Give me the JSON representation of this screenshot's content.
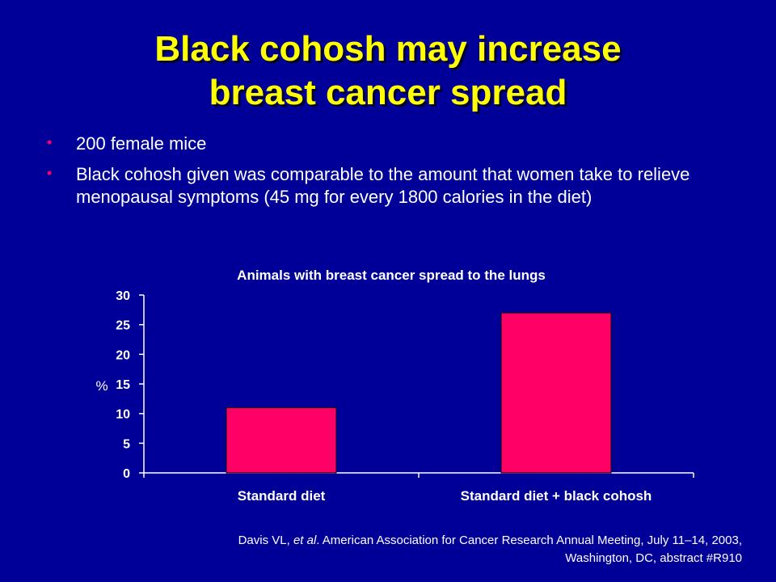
{
  "slide": {
    "title_line1": "Black cohosh may increase",
    "title_line2": "breast cancer spread",
    "bullets": [
      "200 female mice",
      "Black cohosh given was comparable to the amount that women take to relieve menopausal symptoms (45 mg for every 1800 calories in the diet)"
    ],
    "bullet_symbol": "•",
    "citation": {
      "prefix": "Davis VL, ",
      "italic": "et al",
      "rest": ". American Association for Cancer Research Annual Meeting, July 11–14, 2003,",
      "line2": "Washington, DC, abstract #R910"
    }
  },
  "colors": {
    "background": "#000099",
    "title": "#ffff00",
    "bar_fill": "#ff0066",
    "bullet": "#ff0066",
    "text": "#ffffff"
  },
  "chart_data": {
    "type": "bar",
    "title": "Animals with breast cancer spread to the lungs",
    "categories": [
      "Standard diet",
      "Standard diet + black cohosh"
    ],
    "values": [
      11,
      27
    ],
    "xlabel": "",
    "ylabel": "%",
    "ylim": [
      0,
      30
    ],
    "yticks": [
      0,
      5,
      10,
      15,
      20,
      25,
      30
    ],
    "grid": false,
    "legend": "none"
  }
}
